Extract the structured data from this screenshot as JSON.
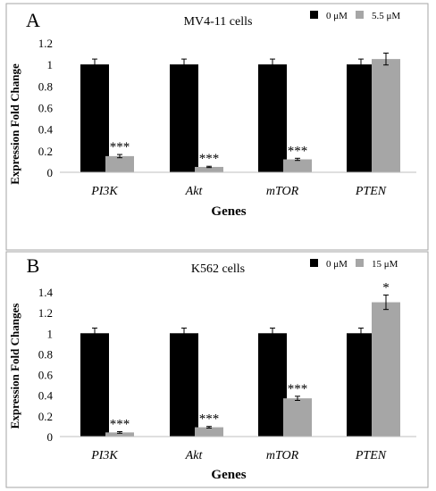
{
  "chart_data": [
    {
      "panel": "A",
      "type": "bar",
      "title": "MV4-11 cells",
      "xlabel": "Genes",
      "ylabel": "Expression Fold Change",
      "categories": [
        "PI3K",
        "Akt",
        "mTOR",
        "PTEN"
      ],
      "series": [
        {
          "name": "0 μM",
          "color": "#000000",
          "values": [
            1.0,
            1.0,
            1.0,
            1.0
          ],
          "errors": [
            0.05,
            0.05,
            0.05,
            0.05
          ]
        },
        {
          "name": "5.5 μM",
          "color": "#a6a6a6",
          "values": [
            0.15,
            0.05,
            0.12,
            1.05
          ],
          "errors": [
            0.015,
            0.006,
            0.01,
            0.055
          ]
        }
      ],
      "significance": [
        "***",
        "***",
        "***",
        ""
      ],
      "ylim": [
        0,
        1.2
      ],
      "yticks": [
        "0",
        "0.2",
        "0.4",
        "0.6",
        "0.8",
        "1",
        "1.2"
      ],
      "legend": "top-right",
      "grid": false
    },
    {
      "panel": "B",
      "type": "bar",
      "title": "K562 cells",
      "xlabel": "Genes",
      "ylabel": "Expression Fold Changes",
      "categories": [
        "PI3K",
        "Akt",
        "mTOR",
        "PTEN"
      ],
      "series": [
        {
          "name": "0 μM",
          "color": "#000000",
          "values": [
            1.0,
            1.0,
            1.0,
            1.0
          ],
          "errors": [
            0.05,
            0.05,
            0.05,
            0.05
          ]
        },
        {
          "name": "15 μM",
          "color": "#a6a6a6",
          "values": [
            0.04,
            0.09,
            0.37,
            1.3
          ],
          "errors": [
            0.008,
            0.008,
            0.02,
            0.07
          ]
        }
      ],
      "significance": [
        "***",
        "***",
        "***",
        "*"
      ],
      "ylim": [
        0,
        1.4
      ],
      "yticks": [
        "0",
        "0.2",
        "0.4",
        "0.6",
        "0.8",
        "1",
        "1.2",
        "1.4"
      ],
      "legend": "top-right",
      "grid": false
    }
  ]
}
